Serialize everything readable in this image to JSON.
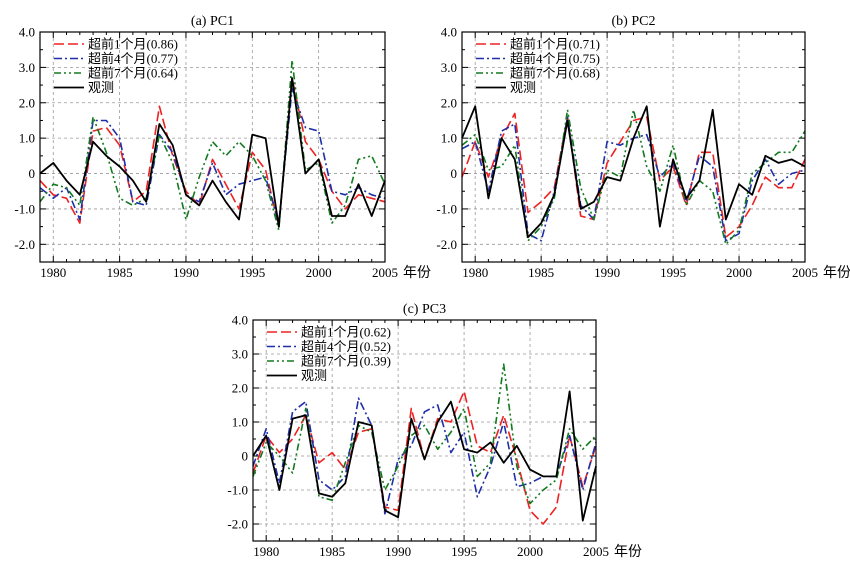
{
  "colors": {
    "lead1": "#ee2222",
    "lead4": "#1f2fa8",
    "lead7": "#127a1e",
    "obs": "#000000",
    "grid": "#999999"
  },
  "chart_data": [
    {
      "type": "line",
      "title": "(a) PC1",
      "xlabel": "年份",
      "xlim": [
        1979,
        2005
      ],
      "ylim": [
        -2.5,
        4.0
      ],
      "xticks": [
        "1980",
        "1985",
        "1990",
        "1995",
        "2000",
        "2005"
      ],
      "yticks": [
        "4.0",
        "3.0",
        "2.0",
        "1.0",
        "0",
        "-1.0",
        "-2.0"
      ],
      "legend_position": "top-left",
      "x": [
        1979,
        1980,
        1981,
        1982,
        1983,
        1984,
        1985,
        1986,
        1987,
        1988,
        1989,
        1990,
        1991,
        1992,
        1993,
        1994,
        1995,
        1996,
        1997,
        1998,
        1999,
        2000,
        2001,
        2002,
        2003,
        2004,
        2005
      ],
      "series": [
        {
          "name": "超前1个月(0.86)",
          "style": "lead1",
          "values": [
            -0.2,
            -0.6,
            -0.7,
            -1.4,
            1.2,
            1.3,
            0.8,
            -0.8,
            -0.5,
            1.9,
            0.5,
            -0.5,
            -0.9,
            0.4,
            -0.3,
            -1.0,
            0.6,
            0.1,
            -1.5,
            2.7,
            0.9,
            0.4,
            -0.5,
            -1.0,
            -0.6,
            -0.7,
            -0.8
          ]
        },
        {
          "name": "超前4个月(0.77)",
          "style": "lead4",
          "values": [
            -0.4,
            -0.7,
            -0.4,
            -1.3,
            1.5,
            1.5,
            1.0,
            -0.8,
            -0.9,
            1.1,
            0.6,
            -0.6,
            -0.8,
            0.3,
            -0.6,
            -0.3,
            -0.2,
            -0.1,
            -1.4,
            2.4,
            1.3,
            1.2,
            -0.5,
            -0.6,
            -0.4,
            -0.6,
            -0.7
          ]
        },
        {
          "name": "超前7个月(0.64)",
          "style": "lead7",
          "values": [
            -0.8,
            -0.3,
            -0.4,
            -0.9,
            1.6,
            0.6,
            -0.7,
            -0.9,
            -0.7,
            1.1,
            0.3,
            -1.3,
            -0.1,
            0.9,
            0.5,
            0.9,
            0.5,
            -0.2,
            -1.6,
            3.2,
            0.1,
            0.3,
            -1.4,
            -0.9,
            0.4,
            0.5,
            -0.3
          ]
        },
        {
          "name": "观测",
          "style": "obs",
          "values": [
            0.0,
            0.3,
            -0.2,
            -0.6,
            0.9,
            0.5,
            0.2,
            -0.2,
            -0.8,
            1.4,
            0.8,
            -0.6,
            -0.9,
            -0.2,
            -0.8,
            -1.3,
            1.1,
            1.0,
            -1.5,
            2.7,
            0.0,
            0.4,
            -1.2,
            -1.2,
            -0.3,
            -1.2,
            -0.2
          ]
        }
      ]
    },
    {
      "type": "line",
      "title": "(b) PC2",
      "xlabel": "年份",
      "xlim": [
        1979,
        2005
      ],
      "ylim": [
        -2.5,
        4.0
      ],
      "xticks": [
        "1980",
        "1985",
        "1990",
        "1995",
        "2000",
        "2005"
      ],
      "yticks": [
        "4.0",
        "3.0",
        "2.0",
        "1.0",
        "0",
        "-1.0",
        "-2.0"
      ],
      "legend_position": "top-left",
      "x": [
        1979,
        1980,
        1981,
        1982,
        1983,
        1984,
        1985,
        1986,
        1987,
        1988,
        1989,
        1990,
        1991,
        1992,
        1993,
        1994,
        1995,
        1996,
        1997,
        1998,
        1999,
        2000,
        2001,
        2002,
        2003,
        2004,
        2005
      ],
      "series": [
        {
          "name": "超前1个月(0.71)",
          "style": "lead1",
          "values": [
            -0.1,
            0.9,
            -0.1,
            1.0,
            1.7,
            -1.1,
            -0.8,
            -0.4,
            1.6,
            -1.2,
            -1.3,
            0.3,
            0.9,
            1.5,
            1.6,
            -0.2,
            0.2,
            -0.9,
            0.6,
            0.6,
            -1.8,
            -1.5,
            -0.9,
            -0.1,
            -0.4,
            -0.4,
            0.4
          ]
        },
        {
          "name": "超前4个月(0.75)",
          "style": "lead4",
          "values": [
            0.7,
            0.9,
            -0.5,
            1.2,
            1.4,
            -1.7,
            -1.9,
            -0.5,
            1.6,
            -0.9,
            -1.3,
            0.9,
            0.8,
            1.0,
            1.1,
            -0.1,
            0.3,
            -0.8,
            0.5,
            0.2,
            -1.9,
            -1.7,
            -0.2,
            0.4,
            -0.3,
            0.0,
            0.1
          ]
        },
        {
          "name": "超前7个月(0.68)",
          "style": "lead7",
          "values": [
            0.8,
            1.1,
            0.1,
            0.2,
            0.8,
            -1.9,
            -1.5,
            -0.7,
            1.8,
            -0.4,
            -1.3,
            0.1,
            -0.1,
            1.8,
            0.2,
            -0.5,
            0.8,
            -0.9,
            -0.2,
            -0.5,
            -2.0,
            -1.6,
            0.0,
            0.3,
            0.6,
            0.6,
            1.2
          ]
        },
        {
          "name": "观测",
          "style": "obs",
          "values": [
            1.0,
            1.9,
            -0.7,
            1.0,
            0.4,
            -1.8,
            -1.4,
            -0.6,
            1.5,
            -1.0,
            -0.8,
            -0.1,
            -0.2,
            1.0,
            1.9,
            -1.5,
            0.4,
            -0.7,
            -0.2,
            1.8,
            -1.3,
            -0.3,
            -0.6,
            0.5,
            0.3,
            0.4,
            0.2
          ]
        }
      ]
    },
    {
      "type": "line",
      "title": "(c) PC3",
      "xlabel": "年份",
      "xlim": [
        1979,
        2005
      ],
      "ylim": [
        -2.5,
        4.0
      ],
      "xticks": [
        "1980",
        "1985",
        "1990",
        "1995",
        "2000",
        "2005"
      ],
      "yticks": [
        "4.0",
        "3.0",
        "2.0",
        "1.0",
        "0",
        "-1.0",
        "-2.0"
      ],
      "legend_position": "top-left",
      "x": [
        1979,
        1980,
        1981,
        1982,
        1983,
        1984,
        1985,
        1986,
        1987,
        1988,
        1989,
        1990,
        1991,
        1992,
        1993,
        1994,
        1995,
        1996,
        1997,
        1998,
        1999,
        2000,
        2001,
        2002,
        2003,
        2004,
        2005
      ],
      "series": [
        {
          "name": "超前1个月(0.62)",
          "style": "lead1",
          "values": [
            -0.5,
            0.6,
            0.1,
            0.5,
            1.2,
            -0.2,
            0.1,
            -0.4,
            0.7,
            0.8,
            -1.5,
            -1.6,
            1.4,
            -0.1,
            1.1,
            1.0,
            1.9,
            0.3,
            0.1,
            1.2,
            -0.1,
            -1.6,
            -2.0,
            -1.5,
            0.6,
            -0.9,
            0.3
          ]
        },
        {
          "name": "超前4个月(0.52)",
          "style": "lead4",
          "values": [
            -0.3,
            0.8,
            -0.8,
            1.3,
            1.6,
            -0.7,
            -1.0,
            -0.6,
            1.7,
            0.9,
            -1.7,
            -0.1,
            0.3,
            1.3,
            1.5,
            0.1,
            0.7,
            -1.2,
            -0.3,
            1.0,
            -0.9,
            -0.8,
            -0.6,
            -0.6,
            0.6,
            -1.0,
            0.4
          ]
        },
        {
          "name": "超前7个月(0.39)",
          "style": "lead7",
          "values": [
            -0.6,
            0.4,
            0.0,
            -0.5,
            1.4,
            -1.2,
            -1.3,
            -0.2,
            0.9,
            0.7,
            -1.0,
            -0.3,
            0.6,
            0.9,
            0.2,
            0.7,
            1.4,
            -0.6,
            -0.2,
            2.7,
            -0.3,
            -1.4,
            -1.0,
            -0.7,
            0.8,
            0.2,
            0.6
          ]
        },
        {
          "name": "观测",
          "style": "obs",
          "values": [
            0.0,
            0.6,
            -1.0,
            1.1,
            1.2,
            -1.1,
            -1.2,
            -0.8,
            1.0,
            0.9,
            -1.6,
            -1.8,
            1.1,
            -0.1,
            1.0,
            1.6,
            0.2,
            0.1,
            0.4,
            -0.2,
            0.3,
            -0.4,
            -0.6,
            -0.6,
            1.9,
            -1.9,
            -0.3
          ]
        }
      ]
    }
  ]
}
